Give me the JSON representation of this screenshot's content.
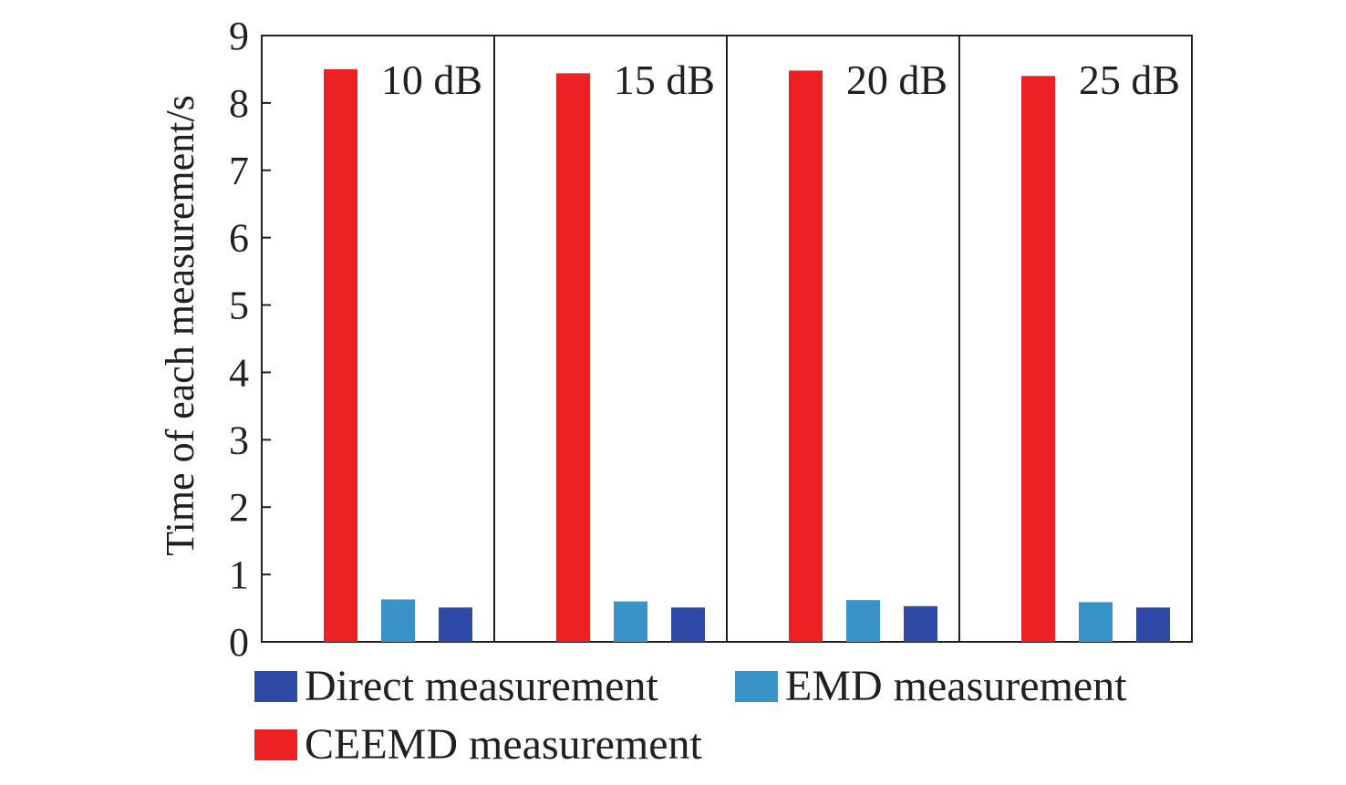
{
  "chart_data": {
    "type": "bar",
    "title": "",
    "xlabel": "",
    "ylabel": "Time of each measurement/s",
    "ylim": [
      0,
      9
    ],
    "yticks": [
      "0",
      "1",
      "2",
      "3",
      "4",
      "5",
      "6",
      "7",
      "8",
      "9"
    ],
    "grid": false,
    "legend_position": "bottom",
    "categories": [
      "10 dB",
      "15 dB",
      "20 dB",
      "25 dB"
    ],
    "bar_order": [
      "CEEMD measurement",
      "EMD measurement",
      "Direct measurement"
    ],
    "series": [
      {
        "name": "Direct measurement",
        "color": "#2e4aa6",
        "values": [
          0.51,
          0.51,
          0.53,
          0.51
        ]
      },
      {
        "name": "EMD measurement",
        "color": "#3a93c6",
        "values": [
          0.63,
          0.6,
          0.62,
          0.59
        ]
      },
      {
        "name": "CEEMD measurement",
        "color": "#ed2124",
        "values": [
          8.5,
          8.44,
          8.48,
          8.4
        ]
      }
    ],
    "legend": [
      "Direct measurement",
      "EMD measurement",
      "CEEMD measurement"
    ]
  }
}
